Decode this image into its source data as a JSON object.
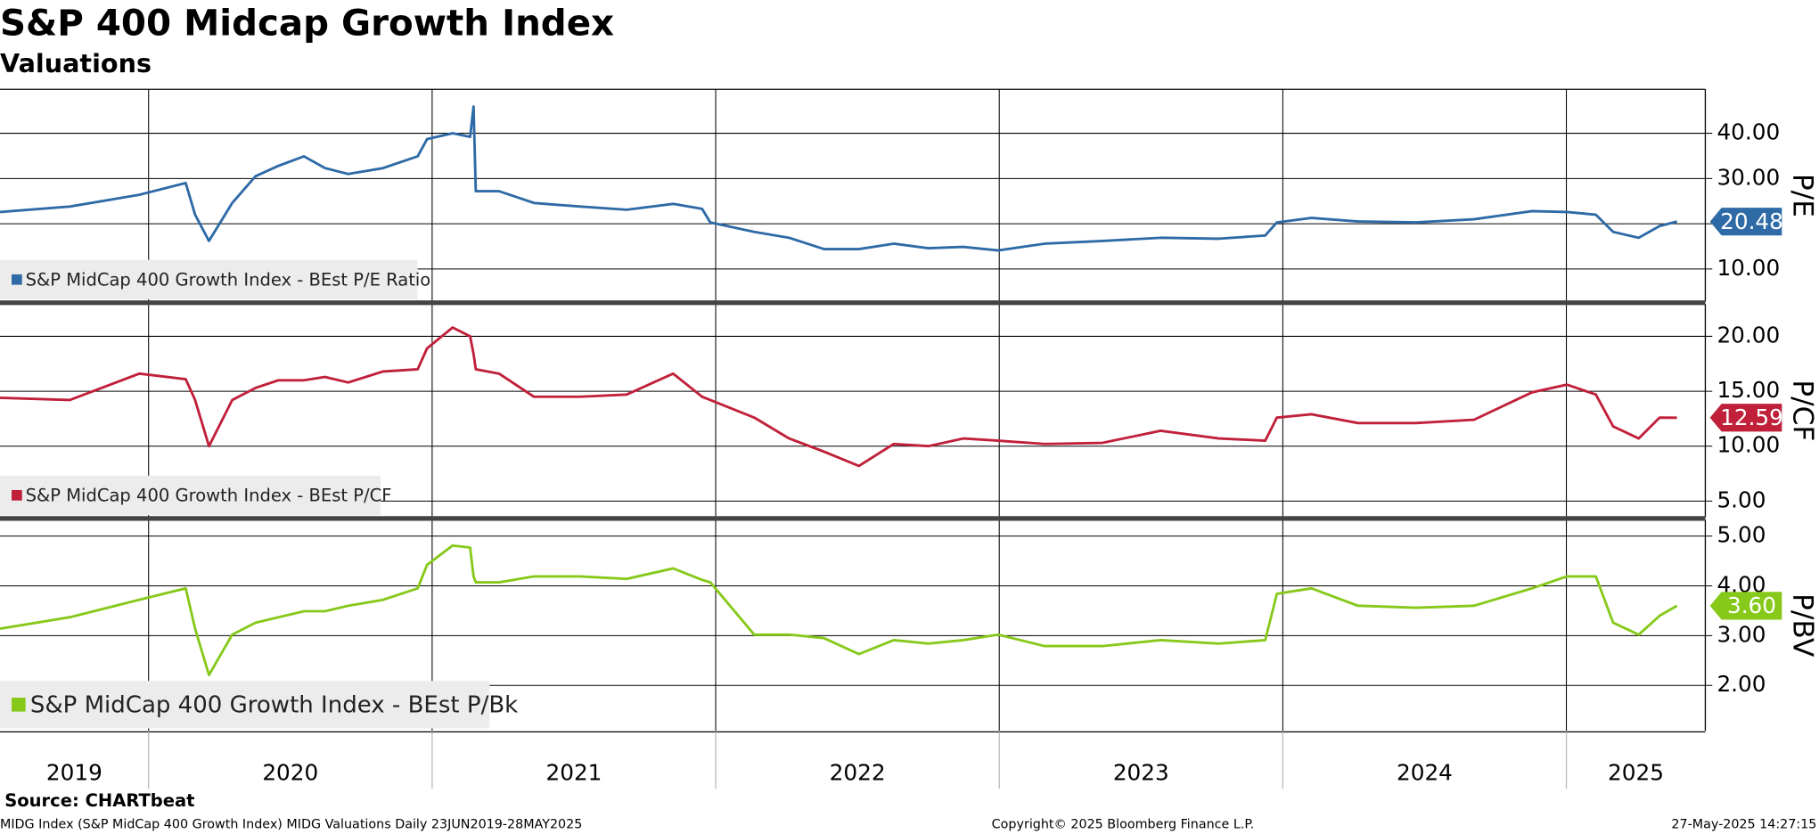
{
  "title": "S&P 400 Midcap Growth Index",
  "subtitle": "Valuations",
  "source": "Source: CHARTbeat",
  "footer": {
    "left": "MIDG Index (S&P MidCap 400 Growth Index) MIDG Valuations  Daily 23JUN2019-28MAY2025",
    "center": "Copyright© 2025 Bloomberg Finance L.P.",
    "right": "27-May-2025 14:27:15"
  },
  "chart_data": [
    {
      "type": "line",
      "ylabel": "P/E",
      "xlim": [
        2019.476,
        2025.49
      ],
      "x": [
        2019.476,
        2019.722,
        2019.967,
        2020.131,
        2020.164,
        2020.213,
        2020.295,
        2020.377,
        2020.458,
        2020.548,
        2020.622,
        2020.704,
        2020.827,
        2020.949,
        2020.982,
        2021.072,
        2021.134,
        2021.146,
        2021.154,
        2021.236,
        2021.359,
        2021.523,
        2021.686,
        2021.85,
        2021.952,
        2021.981,
        2022.136,
        2022.259,
        2022.382,
        2022.505,
        2022.628,
        2022.75,
        2022.873,
        2022.996,
        2023.16,
        2023.364,
        2023.569,
        2023.774,
        2023.938,
        2023.979,
        2024.101,
        2024.265,
        2024.469,
        2024.674,
        2024.879,
        2025.002,
        2025.104,
        2025.165,
        2025.255,
        2025.329,
        2025.39
      ],
      "ylim": [
        2.8,
        49.7
      ],
      "yticks": [
        {
          "value": 10,
          "label": "10.00"
        },
        {
          "value": 20,
          "label": "20.00"
        },
        {
          "value": 30,
          "label": "30.00"
        },
        {
          "value": 40,
          "label": "40.00"
        }
      ],
      "last_value_label": "20.48",
      "series": [
        {
          "name": "S&P MidCap 400 Growth Index - BEst P/E Ratio",
          "color": "#2e6aa6",
          "values": [
            22.6,
            23.8,
            26.4,
            29,
            22,
            16.2,
            24.6,
            30.5,
            32.8,
            34.9,
            32.3,
            31,
            32.3,
            34.9,
            38.7,
            40,
            39.2,
            45.9,
            27.2,
            27.2,
            24.6,
            23.8,
            23.1,
            24.4,
            23.3,
            20.3,
            18.2,
            16.9,
            14.4,
            14.4,
            15.6,
            14.6,
            14.9,
            14.1,
            15.6,
            16.2,
            16.9,
            16.7,
            17.4,
            20.3,
            21.3,
            20.5,
            20.3,
            21,
            22.8,
            22.6,
            22,
            18.2,
            16.9,
            19.5,
            20.48
          ]
        }
      ]
    },
    {
      "type": "line",
      "ylabel": "P/CF",
      "xlim": [
        2019.476,
        2025.49
      ],
      "x": [
        2019.476,
        2019.722,
        2019.967,
        2020.131,
        2020.164,
        2020.213,
        2020.295,
        2020.377,
        2020.458,
        2020.548,
        2020.622,
        2020.704,
        2020.827,
        2020.949,
        2020.982,
        2021.072,
        2021.134,
        2021.146,
        2021.154,
        2021.236,
        2021.359,
        2021.523,
        2021.686,
        2021.85,
        2021.952,
        2021.981,
        2022.136,
        2022.259,
        2022.382,
        2022.505,
        2022.628,
        2022.75,
        2022.873,
        2022.996,
        2023.16,
        2023.364,
        2023.569,
        2023.774,
        2023.938,
        2023.979,
        2024.101,
        2024.265,
        2024.469,
        2024.674,
        2024.879,
        2025.002,
        2025.104,
        2025.165,
        2025.255,
        2025.329,
        2025.39
      ],
      "ylim": [
        3.52,
        22.95
      ],
      "yticks": [
        {
          "value": 5,
          "label": "5.00"
        },
        {
          "value": 10,
          "label": "10.00"
        },
        {
          "value": 15,
          "label": "15.00"
        },
        {
          "value": 20,
          "label": "20.00"
        }
      ],
      "last_value_label": "12.59",
      "series": [
        {
          "name": "S&P MidCap 400 Growth Index - BEst P/CF",
          "color": "#c0203a",
          "values": [
            14.4,
            14.2,
            16.6,
            16.1,
            14.2,
            10,
            14.2,
            15.3,
            16,
            16,
            16.3,
            15.8,
            16.8,
            17,
            18.9,
            20.8,
            20,
            18.4,
            17,
            16.6,
            14.5,
            14.5,
            14.7,
            16.6,
            14.5,
            14.2,
            12.6,
            10.7,
            9.5,
            8.2,
            10.2,
            10,
            10.7,
            10.5,
            10.2,
            10.3,
            11.4,
            10.7,
            10.5,
            12.6,
            12.9,
            12.1,
            12.1,
            12.4,
            14.9,
            15.6,
            14.7,
            11.8,
            10.7,
            12.6,
            12.59
          ]
        }
      ]
    },
    {
      "type": "line",
      "ylabel": "P/BV",
      "xlim": [
        2019.476,
        2025.49
      ],
      "xticks": [
        {
          "value": 2019,
          "label": "2019"
        },
        {
          "value": 2020,
          "label": "2020"
        },
        {
          "value": 2021,
          "label": "2021"
        },
        {
          "value": 2022,
          "label": "2022"
        },
        {
          "value": 2023,
          "label": "2023"
        },
        {
          "value": 2024,
          "label": "2024"
        },
        {
          "value": 2025,
          "label": "2025"
        }
      ],
      "x": [
        2019.476,
        2019.722,
        2019.967,
        2020.131,
        2020.164,
        2020.213,
        2020.295,
        2020.377,
        2020.458,
        2020.548,
        2020.622,
        2020.704,
        2020.827,
        2020.949,
        2020.982,
        2021.072,
        2021.134,
        2021.146,
        2021.154,
        2021.236,
        2021.359,
        2021.523,
        2021.686,
        2021.85,
        2021.952,
        2021.981,
        2022.136,
        2022.259,
        2022.382,
        2022.505,
        2022.628,
        2022.75,
        2022.873,
        2022.996,
        2023.16,
        2023.364,
        2023.569,
        2023.774,
        2023.938,
        2023.979,
        2024.101,
        2024.265,
        2024.469,
        2024.674,
        2024.879,
        2025.002,
        2025.104,
        2025.165,
        2025.255,
        2025.329,
        2025.39
      ],
      "ylim": [
        1.09,
        5.33
      ],
      "yticks": [
        {
          "value": 2,
          "label": "2.00"
        },
        {
          "value": 3,
          "label": "3.00"
        },
        {
          "value": 4,
          "label": "4.00"
        },
        {
          "value": 5,
          "label": "5.00"
        }
      ],
      "last_value_label": "3.60",
      "series": [
        {
          "name": "S&P MidCap 400 Growth Index - BEst P/Bk",
          "color": "#86c91a",
          "values": [
            3.14,
            3.37,
            3.72,
            3.95,
            3.14,
            2.21,
            3.02,
            3.26,
            3.37,
            3.49,
            3.49,
            3.6,
            3.72,
            3.95,
            4.42,
            4.81,
            4.77,
            4.19,
            4.07,
            4.07,
            4.19,
            4.19,
            4.14,
            4.35,
            4.12,
            4.07,
            3.02,
            3.02,
            2.95,
            2.63,
            2.91,
            2.84,
            2.91,
            3.02,
            2.79,
            2.79,
            2.91,
            2.84,
            2.91,
            3.84,
            3.95,
            3.6,
            3.56,
            3.6,
            3.95,
            4.19,
            4.19,
            3.26,
            3.02,
            3.4,
            3.6
          ]
        }
      ]
    }
  ]
}
